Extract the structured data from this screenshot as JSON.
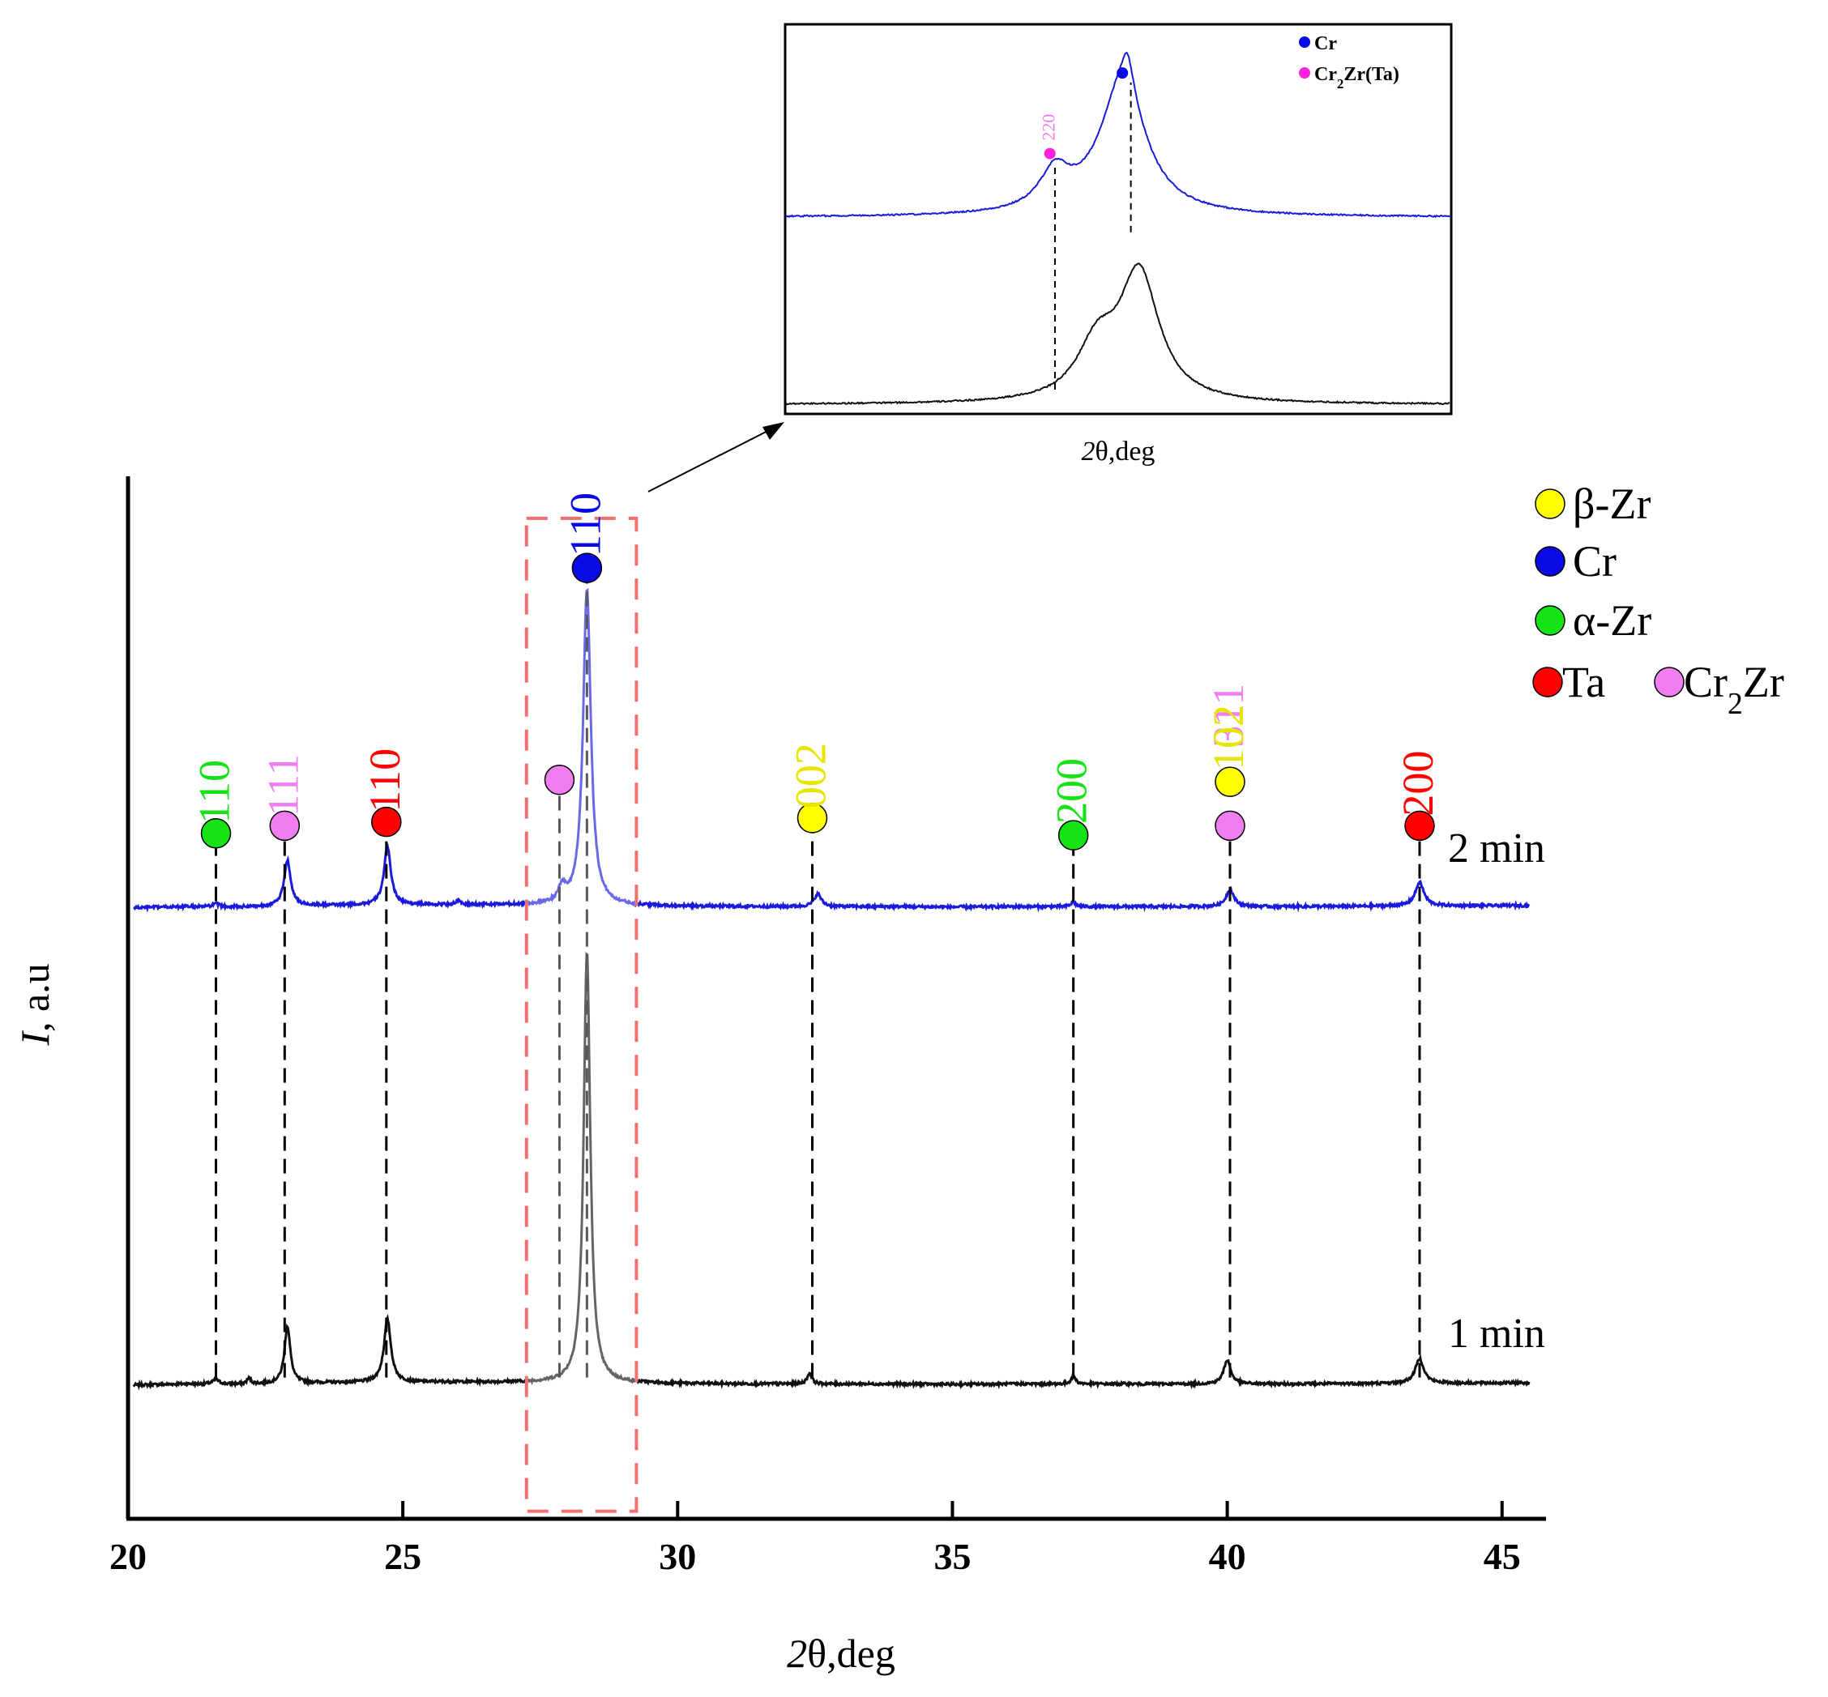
{
  "chart_data": {
    "type": "line",
    "xlabel": "2θ,deg",
    "ylabel": "I, a.u",
    "xlim": [
      20,
      45.8
    ],
    "ylim": [
      -0.35,
      2.38
    ],
    "x_ticks": [
      20,
      25,
      30,
      35,
      40,
      45
    ],
    "grid": false,
    "background_points": [
      [
        20.1,
        0
      ],
      [
        21.0,
        0.003
      ],
      [
        22.0,
        0.002
      ],
      [
        23.5,
        0.006
      ],
      [
        26.0,
        0.008
      ],
      [
        29.5,
        0.004
      ],
      [
        31.0,
        0.003
      ],
      [
        33.0,
        0.003
      ],
      [
        34.0,
        0.003
      ],
      [
        35.0,
        0.002
      ],
      [
        36.0,
        0.003
      ],
      [
        38.5,
        0.003
      ],
      [
        41.0,
        0.003
      ],
      [
        45.5,
        0.006
      ]
    ],
    "series": [
      {
        "name": "1 min",
        "color": "#111111",
        "offset": 0,
        "peaks": [
          {
            "x": 21.6,
            "h": 0.012,
            "w": 0.08
          },
          {
            "x": 22.2,
            "h": 0.015,
            "w": 0.05
          },
          {
            "x": 22.9,
            "h": 0.15,
            "w": 0.075
          },
          {
            "x": 24.72,
            "h": 0.165,
            "w": 0.09
          },
          {
            "x": 28.35,
            "h": 1.13,
            "w": 0.085
          },
          {
            "x": 32.4,
            "h": 0.028,
            "w": 0.06
          },
          {
            "x": 37.2,
            "h": 0.02,
            "w": 0.06
          },
          {
            "x": 40.0,
            "h": 0.063,
            "w": 0.09
          },
          {
            "x": 43.5,
            "h": 0.065,
            "w": 0.11
          }
        ]
      },
      {
        "name": "2 min",
        "color": "#1a1adb",
        "offset": 1.25,
        "peaks": [
          {
            "x": 21.6,
            "h": 0.008,
            "w": 0.08
          },
          {
            "x": 22.9,
            "h": 0.12,
            "w": 0.085
          },
          {
            "x": 24.72,
            "h": 0.152,
            "w": 0.09
          },
          {
            "x": 26.0,
            "h": 0.01,
            "w": 0.05
          },
          {
            "x": 27.9,
            "h": 0.04,
            "w": 0.09
          },
          {
            "x": 28.35,
            "h": 0.83,
            "w": 0.1
          },
          {
            "x": 32.55,
            "h": 0.033,
            "w": 0.09
          },
          {
            "x": 37.2,
            "h": 0.012,
            "w": 0.06
          },
          {
            "x": 40.05,
            "h": 0.045,
            "w": 0.1
          },
          {
            "x": 43.5,
            "h": 0.062,
            "w": 0.11
          }
        ]
      }
    ],
    "series_labels": [
      {
        "series": "2 min",
        "x": 44.9,
        "y": 1.37
      },
      {
        "series": "1 min",
        "x": 44.9,
        "y": 0.1
      }
    ],
    "reference_lines": [
      {
        "x": 21.6,
        "y_top": 1.43
      },
      {
        "x": 22.85,
        "y_top": 1.45
      },
      {
        "x": 24.7,
        "y_top": 1.46
      },
      {
        "x": 27.85,
        "y_top": 1.57
      },
      {
        "x": 28.35,
        "y_top": 2.12
      },
      {
        "x": 32.45,
        "y_top": 1.47
      },
      {
        "x": 37.2,
        "y_top": 1.44
      },
      {
        "x": 40.05,
        "y_top": 1.45
      },
      {
        "x": 43.5,
        "y_top": 1.45
      }
    ],
    "peak_markers": [
      {
        "x": 21.6,
        "y": 1.445,
        "phase": "α-Zr",
        "hkl": "110",
        "label_y": 1.47,
        "color": "#16e316",
        "label_color": "#16e316"
      },
      {
        "x": 22.85,
        "y": 1.465,
        "phase": "Cr2Zr",
        "hkl": "111",
        "label_y": 1.49,
        "color": "#f07ef0",
        "label_color": "#f07ef0"
      },
      {
        "x": 24.7,
        "y": 1.475,
        "phase": "Ta",
        "hkl": "110",
        "label_y": 1.5,
        "color": "#ff0000",
        "label_color": "#ff0000"
      },
      {
        "x": 27.85,
        "y": 1.585,
        "phase": "Cr2Zr",
        "hkl": "",
        "label_y": null,
        "color": "#f07ef0",
        "label_color": "#f07ef0"
      },
      {
        "x": 28.35,
        "y": 2.14,
        "phase": "Cr",
        "hkl": "110",
        "label_y": 2.17,
        "color": "#0a0ae6",
        "label_color": "#0a0ae6"
      },
      {
        "x": 32.45,
        "y": 1.485,
        "phase": "β-Zr",
        "hkl": "002",
        "label_y": 1.51,
        "color": "#ffff00",
        "label_color": "#e8e600"
      },
      {
        "x": 37.2,
        "y": 1.44,
        "phase": "α-Zr",
        "hkl": "200",
        "label_y": 1.47,
        "color": "#16e316",
        "label_color": "#16e316"
      },
      {
        "x": 40.05,
        "y": 1.465,
        "phase": "Cr2Zr",
        "hkl": "311",
        "label_y": 1.67,
        "color": "#f07ef0",
        "label_color": "#f07ef0"
      },
      {
        "x": 40.05,
        "y": 1.58,
        "phase": "β-Zr",
        "hkl": "102",
        "label_y": 1.61,
        "color": "#ffff00",
        "label_color": "#e8e600"
      },
      {
        "x": 43.5,
        "y": 1.465,
        "phase": "Ta",
        "hkl": "200",
        "label_y": 1.49,
        "color": "#ff0000",
        "label_color": "#ff0000"
      }
    ],
    "highlight_box": {
      "x": [
        27.25,
        29.25
      ],
      "y": [
        -0.33,
        2.27
      ],
      "color": "#f07070"
    },
    "legend": {
      "placement": "top-right",
      "entries": [
        {
          "label": "β-Zr",
          "color": "#ffff00"
        },
        {
          "label": "Cr",
          "color": "#0a0ae6"
        },
        {
          "label": "α-Zr",
          "color": "#16e316"
        },
        {
          "label": "Ta",
          "color": "#ff0000"
        },
        {
          "label": "Cr2Zr",
          "color": "#f07ef0"
        }
      ]
    },
    "inset": {
      "type": "line",
      "xlabel": "2θ,deg",
      "note": "zoom of highlighted region",
      "xlim": [
        26.35,
        30.3
      ],
      "ylim": [
        -0.05,
        2.03
      ],
      "series": [
        {
          "name": "2 min",
          "color": "#1a1adb",
          "offset": 1.0,
          "peaks": [
            {
              "x": 27.95,
              "h": 0.2,
              "w": 0.13
            },
            {
              "x": 28.35,
              "h": 0.7,
              "w": 0.2
            },
            {
              "x": 28.38,
              "h": 0.18,
              "w": 0.05
            }
          ]
        },
        {
          "name": "1 min",
          "color": "#111111",
          "offset": 0,
          "peaks": [
            {
              "x": 28.2,
              "h": 0.28,
              "w": 0.17
            },
            {
              "x": 28.45,
              "h": 0.68,
              "w": 0.17
            }
          ]
        }
      ],
      "reference_lines": [
        {
          "x": 27.95,
          "y_bottom": 0.08,
          "y_top": 1.29
        },
        {
          "x": 28.4,
          "y_bottom": 0.92,
          "y_top": 1.72
        }
      ],
      "peak_markers": [
        {
          "x": 27.92,
          "y": 1.34,
          "phase": "Cr2Zr(Ta)",
          "hkl": "220",
          "color": "#ff22dd",
          "label_color": "#f07ef0"
        },
        {
          "x": 28.35,
          "y": 1.77,
          "phase": "Cr",
          "hkl": "",
          "color": "#0a0ae6",
          "label_color": "#0a0ae6"
        }
      ],
      "legend": {
        "placement": "top-right",
        "entries": [
          {
            "label": "Cr",
            "color": "#0a0ae6"
          },
          {
            "label": "Cr2Zr(Ta)",
            "color": "#ff22dd"
          }
        ]
      }
    }
  }
}
